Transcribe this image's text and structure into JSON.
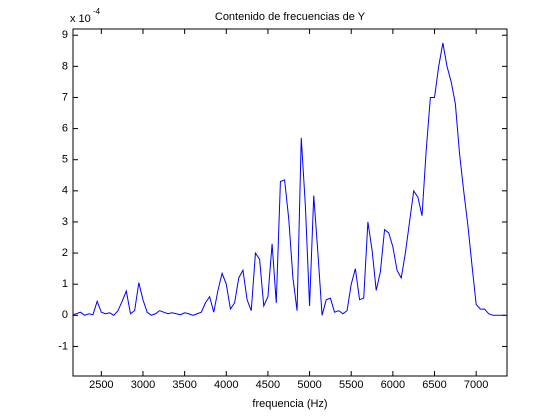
{
  "chart_data": {
    "type": "line",
    "title": "Contenido de frecuencias de Y",
    "x_label": "frequencia (Hz)",
    "y_multiplier": {
      "base": "x 10",
      "exponent": "-4"
    },
    "x": [
      2160,
      2200,
      2250,
      2300,
      2350,
      2400,
      2450,
      2500,
      2550,
      2600,
      2650,
      2700,
      2750,
      2800,
      2850,
      2900,
      2950,
      3000,
      3050,
      3100,
      3150,
      3200,
      3250,
      3300,
      3350,
      3400,
      3450,
      3500,
      3550,
      3600,
      3650,
      3700,
      3750,
      3800,
      3850,
      3900,
      3950,
      4000,
      4050,
      4100,
      4150,
      4200,
      4250,
      4300,
      4350,
      4400,
      4450,
      4500,
      4550,
      4600,
      4650,
      4700,
      4750,
      4800,
      4850,
      4900,
      4950,
      5000,
      5050,
      5100,
      5150,
      5200,
      5250,
      5300,
      5350,
      5400,
      5450,
      5500,
      5550,
      5600,
      5650,
      5700,
      5750,
      5800,
      5850,
      5900,
      5950,
      6000,
      6050,
      6100,
      6150,
      6200,
      6250,
      6300,
      6350,
      6400,
      6450,
      6500,
      6550,
      6600,
      6650,
      6700,
      6750,
      6800,
      6850,
      6900,
      6950,
      7000,
      7050,
      7100,
      7150,
      7200,
      7250,
      7300,
      7350
    ],
    "series": [
      {
        "color": "#0000ff",
        "values": [
          0.02,
          0.05,
          0.1,
          0.0,
          0.05,
          0.02,
          0.45,
          0.1,
          0.05,
          0.08,
          0.0,
          0.15,
          0.45,
          0.78,
          0.05,
          0.15,
          1.05,
          0.5,
          0.1,
          0.0,
          0.05,
          0.15,
          0.1,
          0.05,
          0.08,
          0.05,
          0.02,
          0.08,
          0.05,
          0.0,
          0.05,
          0.1,
          0.4,
          0.6,
          0.1,
          0.8,
          1.35,
          1.0,
          0.2,
          0.4,
          1.2,
          1.45,
          0.5,
          0.15,
          2.0,
          1.8,
          0.3,
          0.6,
          2.3,
          0.4,
          4.3,
          4.35,
          3.1,
          1.2,
          0.15,
          5.7,
          3.5,
          0.3,
          3.85,
          2.0,
          0.0,
          0.5,
          0.55,
          0.1,
          0.15,
          0.05,
          0.15,
          1.0,
          1.5,
          0.5,
          0.55,
          3.0,
          2.1,
          0.8,
          1.4,
          2.75,
          2.65,
          2.2,
          1.45,
          1.2,
          2.0,
          3.0,
          4.0,
          3.8,
          3.2,
          5.3,
          7.0,
          7.0,
          8.0,
          8.75,
          8.0,
          7.5,
          6.8,
          5.2,
          4.0,
          2.9,
          1.6,
          0.35,
          0.2,
          0.2,
          0.05,
          0.0,
          0.0,
          0.0,
          0.0
        ]
      }
    ],
    "xlim": [
      2160,
      7370
    ],
    "ylim": [
      -1.95,
      9.2
    ],
    "xticks": [
      2500,
      3000,
      3500,
      4000,
      4500,
      5000,
      5500,
      6000,
      6500,
      7000
    ],
    "yticks": [
      -1,
      0,
      1,
      2,
      3,
      4,
      5,
      6,
      7,
      8,
      9
    ],
    "grid": false
  }
}
